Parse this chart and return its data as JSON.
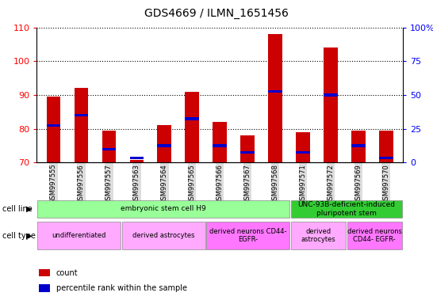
{
  "title": "GDS4669 / ILMN_1651456",
  "samples": [
    "GSM997555",
    "GSM997556",
    "GSM997557",
    "GSM997563",
    "GSM997564",
    "GSM997565",
    "GSM997566",
    "GSM997567",
    "GSM997568",
    "GSM997571",
    "GSM997572",
    "GSM997569",
    "GSM997570"
  ],
  "count_values": [
    89.5,
    92.0,
    79.5,
    70.7,
    81.0,
    91.0,
    82.0,
    78.0,
    108.0,
    79.0,
    104.0,
    79.5,
    79.5
  ],
  "percentile_right": [
    27.5,
    35.0,
    10.0,
    3.5,
    12.5,
    32.5,
    12.5,
    7.5,
    52.5,
    7.5,
    50.0,
    12.5,
    3.5
  ],
  "ylim_left": [
    70,
    110
  ],
  "ylim_right": [
    0,
    100
  ],
  "yticks_left": [
    70,
    80,
    90,
    100,
    110
  ],
  "yticks_right": [
    0,
    25,
    50,
    75,
    100
  ],
  "bar_color": "#cc0000",
  "percentile_color": "#0000cc",
  "bar_width": 0.5,
  "cell_line_groups": [
    {
      "label": "embryonic stem cell H9",
      "start": 0,
      "end": 8,
      "color": "#99ff99"
    },
    {
      "label": "UNC-93B-deficient-induced\npluripotent stem",
      "start": 9,
      "end": 12,
      "color": "#33cc33"
    }
  ],
  "cell_type_groups": [
    {
      "label": "undifferentiated",
      "start": 0,
      "end": 2,
      "color": "#ffaaff"
    },
    {
      "label": "derived astrocytes",
      "start": 3,
      "end": 5,
      "color": "#ffaaff"
    },
    {
      "label": "derived neurons CD44-\nEGFR-",
      "start": 6,
      "end": 8,
      "color": "#ff77ff"
    },
    {
      "label": "derived\nastrocytes",
      "start": 9,
      "end": 10,
      "color": "#ffaaff"
    },
    {
      "label": "derived neurons\nCD44- EGFR-",
      "start": 11,
      "end": 12,
      "color": "#ff77ff"
    }
  ],
  "legend_items": [
    {
      "label": "count",
      "color": "#cc0000"
    },
    {
      "label": "percentile rank within the sample",
      "color": "#0000cc"
    }
  ]
}
